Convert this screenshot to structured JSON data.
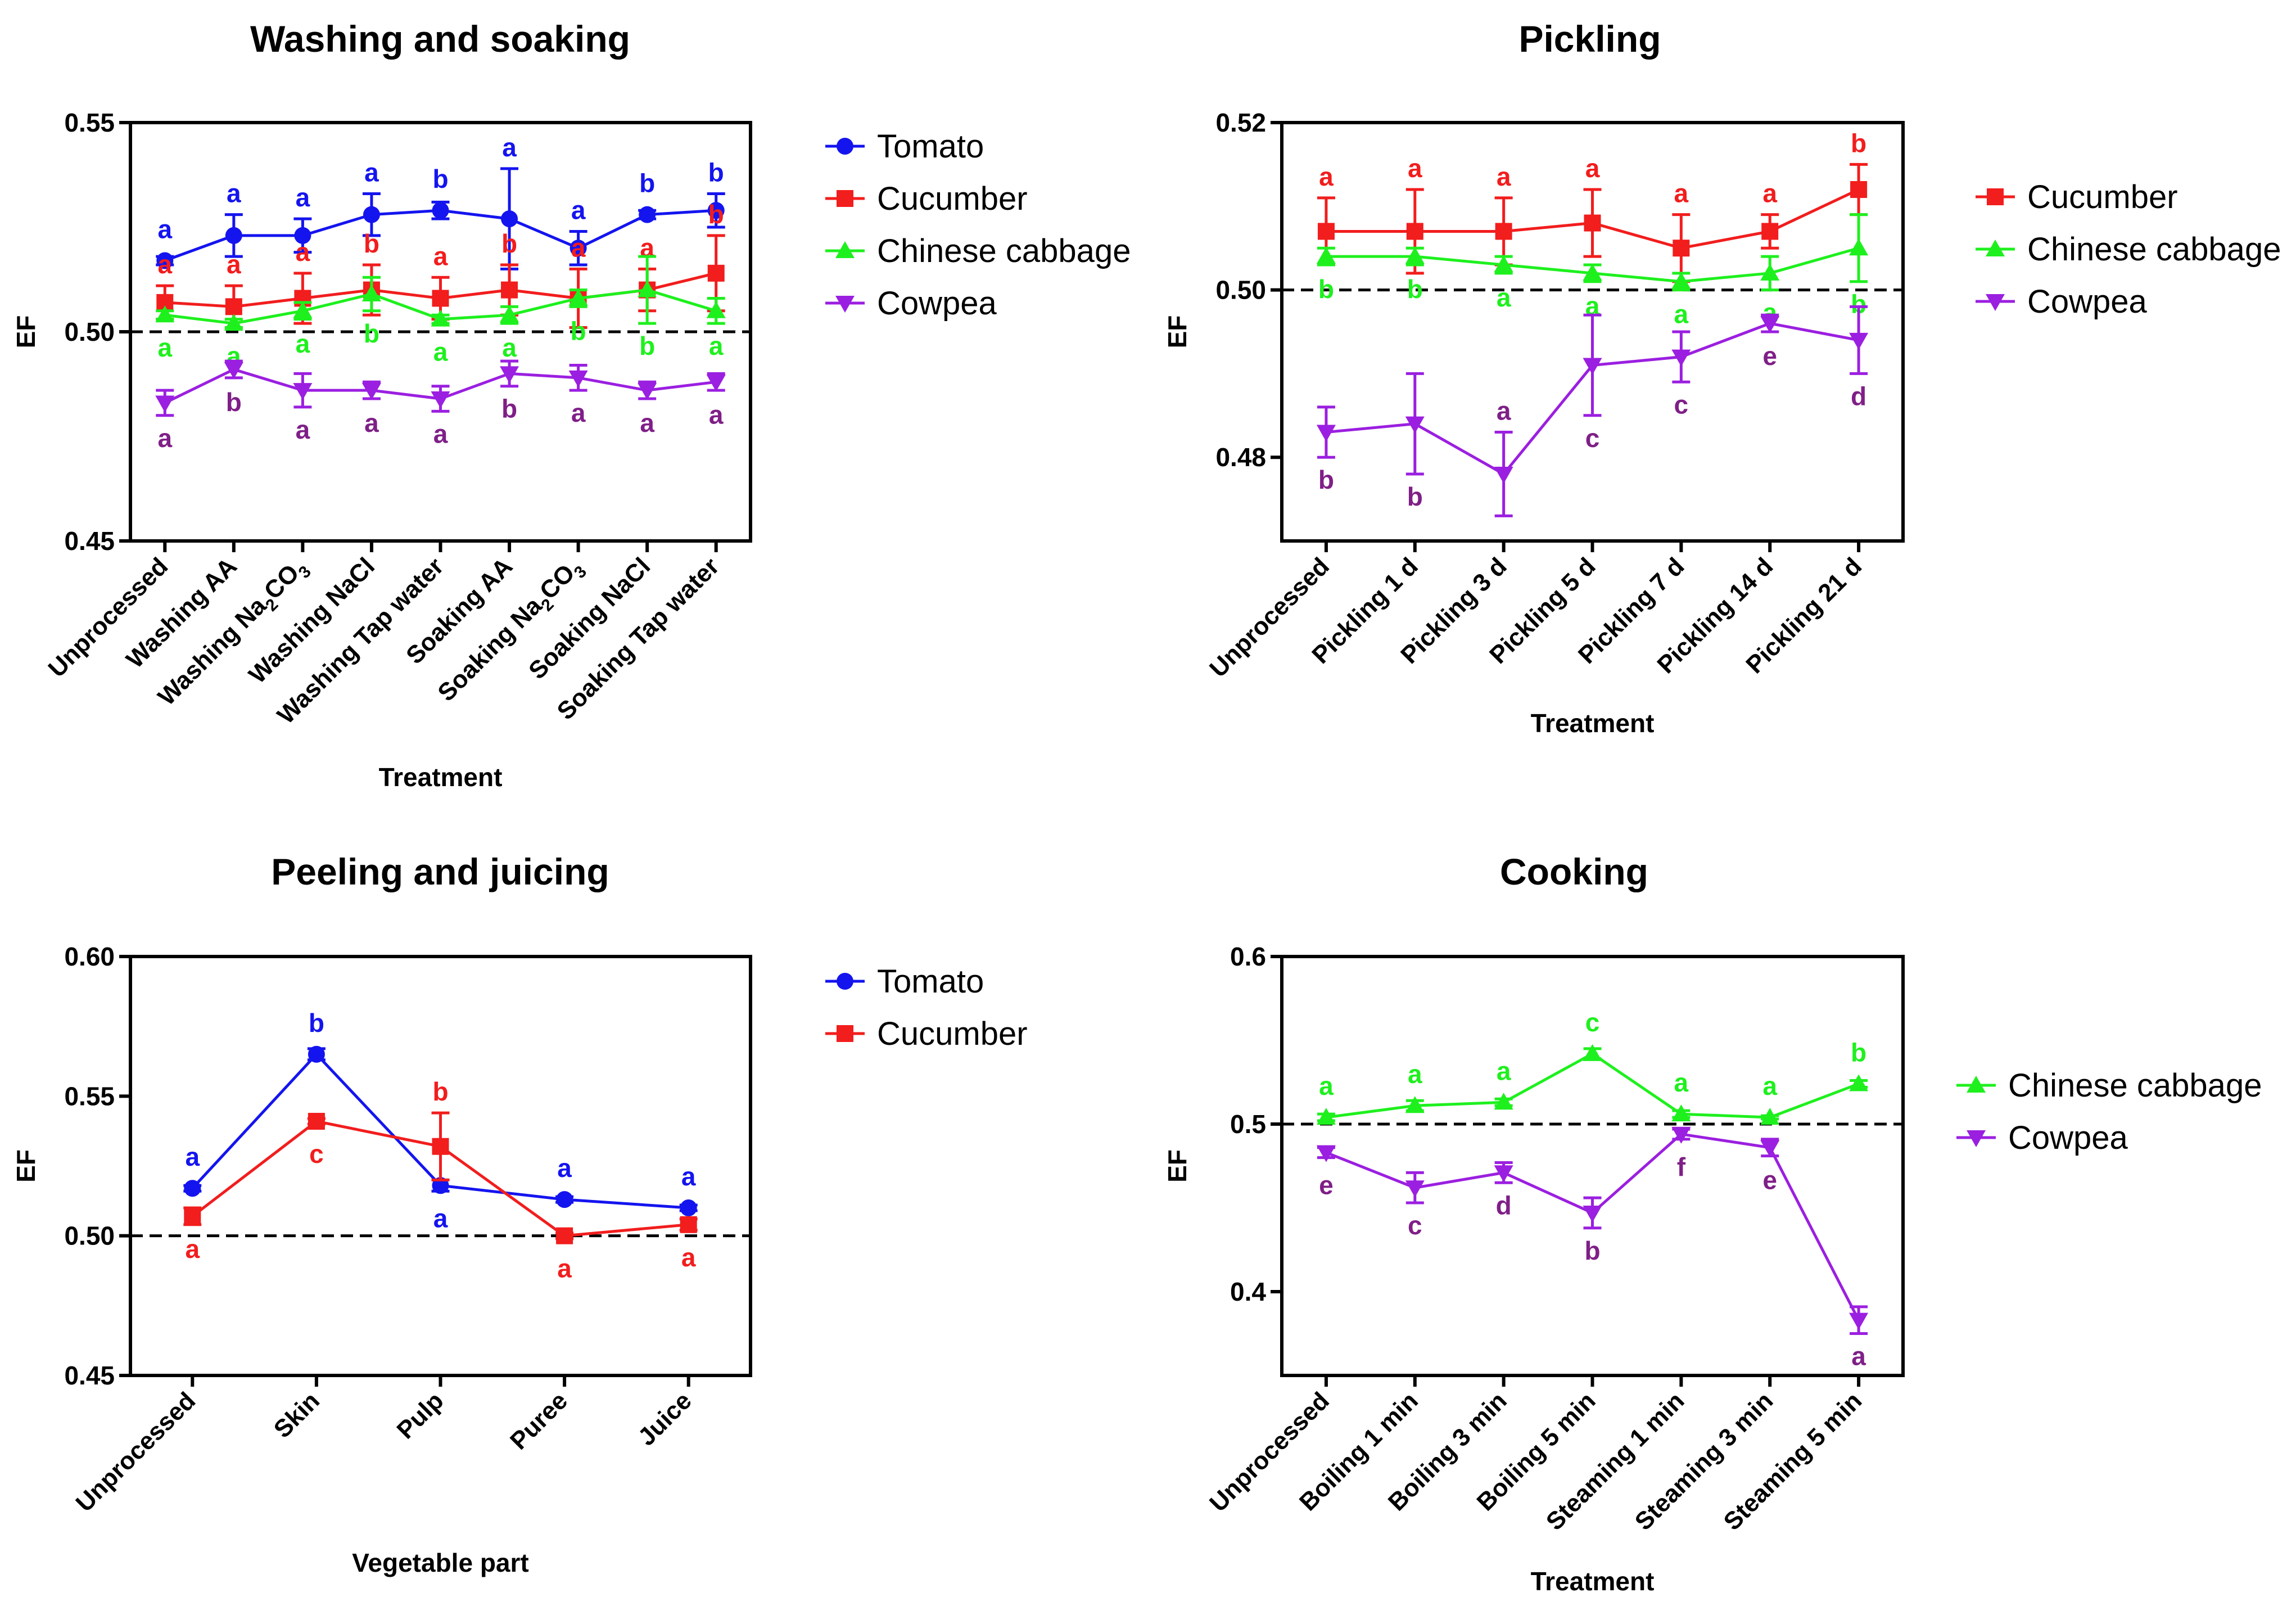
{
  "colors": {
    "Tomato": "#1414ef",
    "Cucumber": "#f21d1d",
    "Chinese cabbage": "#1ef01e",
    "Cowpea": "#9b1fe0",
    "Cowpea_label": "#7f1f87"
  },
  "chart_data": [
    {
      "id": "washing",
      "type": "line",
      "title": "Washing and soaking",
      "xlabel": "Treatment",
      "ylabel": "EF",
      "ylim": [
        0.45,
        0.55
      ],
      "yticks": [
        "0.45",
        "0.50",
        "0.55"
      ],
      "ytick_values": [
        0.45,
        0.5,
        0.55
      ],
      "reference_line": 0.5,
      "legend_position": "right",
      "categories": [
        {
          "text": "Unprocessed"
        },
        {
          "text": "Washing AA"
        },
        {
          "text": "Washing Na",
          "sub": "2",
          "tail": "CO",
          "sub2": "3"
        },
        {
          "text": "Washing NaCl"
        },
        {
          "text": "Washing Tap water"
        },
        {
          "text": "Soaking AA"
        },
        {
          "text": "Soaking Na",
          "sub": "2",
          "tail": "CO",
          "sub2": "3"
        },
        {
          "text": "Soaking NaCl"
        },
        {
          "text": "Soaking Tap water"
        }
      ],
      "series": [
        {
          "name": "Tomato",
          "marker": "circle",
          "values": [
            0.517,
            0.523,
            0.523,
            0.528,
            0.529,
            0.527,
            0.52,
            0.528,
            0.529
          ],
          "errors": [
            0.001,
            0.005,
            0.004,
            0.005,
            0.002,
            0.012,
            0.004,
            0.001,
            0.004
          ],
          "letters": [
            "a",
            "a",
            "a",
            "a",
            "b",
            "a",
            "a",
            "b",
            "b"
          ],
          "letter_pos": [
            "above",
            "above",
            "above",
            "above",
            "above",
            "above",
            "above",
            "above",
            "above"
          ]
        },
        {
          "name": "Cucumber",
          "marker": "square",
          "values": [
            0.507,
            0.506,
            0.508,
            0.51,
            0.508,
            0.51,
            0.508,
            0.51,
            0.514
          ],
          "errors": [
            0.004,
            0.005,
            0.006,
            0.006,
            0.005,
            0.006,
            0.007,
            0.005,
            0.009
          ],
          "letters": [
            "a",
            "a",
            "a",
            "b",
            "a",
            "b",
            "a",
            "a",
            "b"
          ],
          "letter_pos": [
            "above",
            "above",
            "above",
            "above",
            "above",
            "above",
            "above",
            "above",
            "above"
          ]
        },
        {
          "name": "Chinese cabbage",
          "marker": "triangle-up",
          "values": [
            0.504,
            0.502,
            0.505,
            0.509,
            0.503,
            0.504,
            0.508,
            0.51,
            0.505
          ],
          "errors": [
            0.001,
            0.001,
            0.002,
            0.004,
            0.001,
            0.002,
            0.002,
            0.008,
            0.003
          ],
          "letters": [
            "a",
            "a",
            "a",
            "b",
            "a",
            "a",
            "b",
            "b",
            "a"
          ],
          "letter_pos": [
            "below",
            "below",
            "below",
            "below",
            "below",
            "below",
            "below",
            "below",
            "below"
          ]
        },
        {
          "name": "Cowpea",
          "marker": "triangle-down",
          "values": [
            0.483,
            0.491,
            0.486,
            0.486,
            0.484,
            0.49,
            0.489,
            0.486,
            0.488
          ],
          "errors": [
            0.003,
            0.002,
            0.004,
            0.002,
            0.003,
            0.003,
            0.003,
            0.002,
            0.002
          ],
          "letters": [
            "a",
            "b",
            "a",
            "a",
            "a",
            "b",
            "a",
            "a",
            "a"
          ],
          "letter_pos": [
            "below",
            "below",
            "below",
            "below",
            "below",
            "below",
            "below",
            "below",
            "below"
          ]
        }
      ]
    },
    {
      "id": "pickling",
      "type": "line",
      "title": "Pickling",
      "xlabel": "Treatment",
      "ylabel": "EF",
      "ylim": [
        0.47,
        0.52
      ],
      "yticks": [
        "0.48",
        "0.50",
        "0.52"
      ],
      "ytick_values": [
        0.48,
        0.5,
        0.52
      ],
      "reference_line": 0.5,
      "legend_position": "right",
      "categories": [
        {
          "text": "Unprocessed"
        },
        {
          "text": "Pickling 1 d"
        },
        {
          "text": "Pickling 3 d"
        },
        {
          "text": "Pickling 5 d"
        },
        {
          "text": "Pickling 7 d"
        },
        {
          "text": "Pickling 14 d"
        },
        {
          "text": "Pickling 21 d"
        }
      ],
      "series": [
        {
          "name": "Cucumber",
          "marker": "square",
          "values": [
            0.507,
            0.507,
            0.507,
            0.508,
            0.505,
            0.507,
            0.512
          ],
          "errors": [
            0.004,
            0.005,
            0.004,
            0.004,
            0.004,
            0.002,
            0.003
          ],
          "letters": [
            "a",
            "a",
            "a",
            "a",
            "a",
            "a",
            "b"
          ],
          "letter_pos": [
            "above",
            "above",
            "above",
            "above",
            "above",
            "above",
            "above"
          ]
        },
        {
          "name": "Chinese cabbage",
          "marker": "triangle-up",
          "values": [
            0.504,
            0.504,
            0.503,
            0.502,
            0.501,
            0.502,
            0.505
          ],
          "errors": [
            0.001,
            0.001,
            0.001,
            0.001,
            0.001,
            0.002,
            0.004
          ],
          "letters": [
            "b",
            "b",
            "a",
            "a",
            "a",
            "a",
            "b"
          ],
          "letter_pos": [
            "below",
            "below",
            "below",
            "below",
            "below",
            "below",
            "below"
          ]
        },
        {
          "name": "Cowpea",
          "marker": "triangle-down",
          "values": [
            0.483,
            0.484,
            0.478,
            0.491,
            0.492,
            0.496,
            0.494
          ],
          "errors": [
            0.003,
            0.006,
            0.005,
            0.006,
            0.003,
            0.001,
            0.004
          ],
          "letters": [
            "b",
            "b",
            "a",
            "c",
            "c",
            "e",
            "d"
          ],
          "letter_pos": [
            "below",
            "below",
            "above",
            "below",
            "below",
            "below",
            "below"
          ]
        }
      ]
    },
    {
      "id": "peeling",
      "type": "line",
      "title": "Peeling and juicing",
      "xlabel": "Vegetable part",
      "ylabel": "EF",
      "ylim": [
        0.45,
        0.6
      ],
      "yticks": [
        "0.45",
        "0.50",
        "0.55",
        "0.60"
      ],
      "ytick_values": [
        0.45,
        0.5,
        0.55,
        0.6
      ],
      "reference_line": 0.5,
      "legend_position": "right",
      "categories": [
        {
          "text": "Unprocessed"
        },
        {
          "text": "Skin"
        },
        {
          "text": "Pulp"
        },
        {
          "text": "Puree"
        },
        {
          "text": "Juice"
        }
      ],
      "series": [
        {
          "name": "Tomato",
          "marker": "circle",
          "values": [
            0.517,
            0.565,
            0.518,
            0.513,
            0.51
          ],
          "errors": [
            0.001,
            0.002,
            0.002,
            0.001,
            0.001
          ],
          "letters": [
            "a",
            "b",
            "a",
            "a",
            "a"
          ],
          "letter_pos": [
            "above",
            "above",
            "below",
            "above",
            "above"
          ]
        },
        {
          "name": "Cucumber",
          "marker": "square",
          "values": [
            0.507,
            0.541,
            0.532,
            0.5,
            0.504
          ],
          "errors": [
            0.003,
            0.001,
            0.012,
            0.001,
            0.002
          ],
          "letters": [
            "a",
            "c",
            "b",
            "a",
            "a"
          ],
          "letter_pos": [
            "below",
            "below",
            "above",
            "below",
            "below"
          ]
        }
      ]
    },
    {
      "id": "cooking",
      "type": "line",
      "title": "Cooking",
      "xlabel": "Treatment",
      "ylabel": "EF",
      "ylim": [
        0.35,
        0.6
      ],
      "yticks": [
        "0.4",
        "0.5",
        "0.6"
      ],
      "ytick_values": [
        0.4,
        0.5,
        0.6
      ],
      "reference_line": 0.5,
      "legend_position": "right",
      "categories": [
        {
          "text": "Unprocessed"
        },
        {
          "text": "Boiling 1 min"
        },
        {
          "text": "Boiling 3 min"
        },
        {
          "text": "Boiling 5 min"
        },
        {
          "text": "Steaming 1 min"
        },
        {
          "text": "Steaming 3 min"
        },
        {
          "text": "Steaming 5 min"
        }
      ],
      "series": [
        {
          "name": "Chinese cabbage",
          "marker": "triangle-up",
          "values": [
            0.504,
            0.511,
            0.513,
            0.542,
            0.506,
            0.504,
            0.524
          ],
          "errors": [
            0.002,
            0.003,
            0.002,
            0.003,
            0.002,
            0.001,
            0.002
          ],
          "letters": [
            "a",
            "a",
            "a",
            "c",
            "a",
            "a",
            "b"
          ],
          "letter_pos": [
            "above",
            "above",
            "above",
            "above",
            "above",
            "above",
            "above"
          ]
        },
        {
          "name": "Cowpea",
          "marker": "triangle-down",
          "values": [
            0.483,
            0.462,
            0.471,
            0.447,
            0.494,
            0.486,
            0.383
          ],
          "errors": [
            0.003,
            0.009,
            0.006,
            0.009,
            0.003,
            0.005,
            0.008
          ],
          "letters": [
            "e",
            "c",
            "d",
            "b",
            "f",
            "e",
            "a"
          ],
          "letter_pos": [
            "below",
            "below",
            "below",
            "below",
            "below",
            "below",
            "below"
          ]
        }
      ]
    }
  ]
}
